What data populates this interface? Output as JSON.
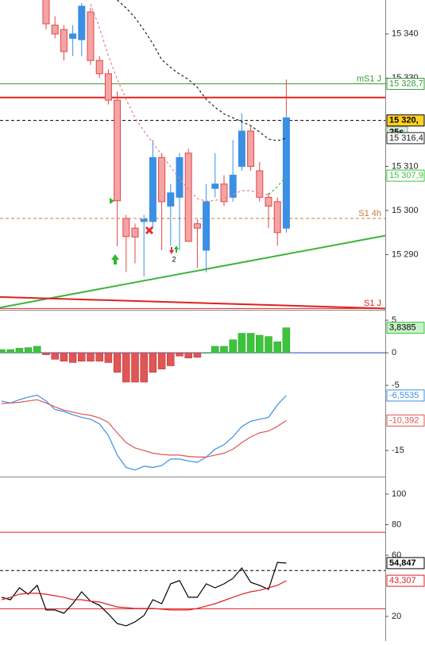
{
  "chart_data": [
    {
      "type": "candlestick",
      "open": [
        null,
        null,
        null,
        null,
        null,
        15348,
        15342,
        15341,
        15339,
        15338.7,
        15345,
        15334,
        15331,
        15325,
        15298.2,
        15296,
        15297.5,
        15297.5,
        15312,
        15301,
        15303,
        15313,
        15297,
        15291,
        15305,
        15306,
        15303,
        15310,
        15318,
        15309,
        15303,
        15302,
        15296
      ],
      "high": [
        null,
        null,
        null,
        null,
        null,
        15349,
        15344,
        15342,
        15342,
        15347,
        15346,
        15335,
        15332,
        15327,
        15299,
        15297,
        15299,
        15316,
        15313,
        15306,
        15313,
        15314,
        15298,
        15306,
        15313,
        15308,
        15316,
        15322,
        15319,
        15311,
        15304,
        15303,
        15322
      ],
      "low": [
        null,
        null,
        null,
        null,
        null,
        15341,
        15339,
        15334,
        15335,
        15335,
        15333,
        15330,
        15324,
        15291.9,
        15286.1,
        15288,
        15285,
        15296,
        15291,
        15292,
        15291,
        15293,
        15287,
        15286,
        15303,
        15301,
        15302,
        15309,
        15309,
        15302,
        15296,
        15292,
        15295
      ],
      "close": [
        null,
        null,
        null,
        null,
        null,
        15342.3,
        15340,
        15336,
        15340,
        15346.3,
        15334,
        15331,
        15325,
        15302.2,
        15294.1,
        15294,
        15298,
        15312,
        15302,
        15304,
        15312,
        15293,
        15296,
        15302,
        15306,
        15302,
        15308,
        15318,
        15310,
        15303,
        15301,
        15295,
        15321
      ],
      "extra_high": 15329.7,
      "up_color": "#3b8fe4",
      "down_color": "#f4a4a4",
      "down_stroke": "#e04848",
      "ylim": [
        15277.5,
        15347.7
      ],
      "yticks": [
        {
          "value": 15340,
          "label": "15 340"
        },
        {
          "value": 15330,
          "label": "15 330"
        },
        {
          "value": 15310,
          "label": "15 310"
        },
        {
          "value": 15300,
          "label": "15 300"
        },
        {
          "value": 15290,
          "label": "15 290"
        }
      ],
      "series": [
        {
          "color": "#222222",
          "dash": true,
          "end_label": "15 316,4",
          "values": [
            null,
            null,
            null,
            null,
            null,
            null,
            null,
            null,
            null,
            null,
            null,
            null,
            null,
            15347.7,
            15345.9,
            15343.7,
            15340.9,
            15337.8,
            15334.2,
            15332.4,
            15330.9,
            15329.7,
            15327.9,
            15325.2,
            15323.4,
            15321.9,
            15321.0,
            15320.1,
            15319.2,
            15317.8,
            15316.2,
            15315.8,
            15316.4
          ]
        },
        {
          "color": "#e88080",
          "dash": true,
          "values": [
            null,
            null,
            null,
            null,
            null,
            null,
            null,
            null,
            null,
            null,
            15346.8,
            15341.4,
            15335.1,
            15329.7,
            15325.2,
            15321.0,
            15318.0,
            15315.3,
            15312.6,
            15309.9,
            15307.2,
            15304.8,
            15302.7,
            15302.1,
            15302.3,
            15302.7,
            15303.6,
            15304.5,
            15304.5,
            15303.9,
            15303.6,
            null,
            null
          ]
        },
        {
          "color": "#3cc43c",
          "dash": true,
          "end_label": "15 307,9",
          "values": [
            null,
            null,
            null,
            null,
            null,
            null,
            null,
            null,
            null,
            null,
            null,
            null,
            null,
            null,
            null,
            null,
            null,
            null,
            null,
            null,
            null,
            null,
            null,
            null,
            null,
            null,
            null,
            null,
            null,
            null,
            15303.6,
            15305.4,
            15307.9
          ]
        }
      ],
      "levels": [
        {
          "name": "mS1 J",
          "value": 15328.7,
          "label": "15 328,7",
          "color": "#3a9a3a"
        },
        {
          "value": 15325.6,
          "color": "#e02020",
          "width": 2
        },
        {
          "value": 15320.4,
          "label": "15 320,",
          "timer": "25s",
          "color": "#000000",
          "dash": true,
          "label_fill": "#ffd21f"
        },
        {
          "name": "S1 4h",
          "value": 15298.2,
          "color": "#d07a3a",
          "dash": true
        },
        {
          "name": "S1 J",
          "value": 15277.8,
          "color": "#e02020"
        }
      ],
      "trendlines": [
        {
          "color": "#3cb43c",
          "values": [
            15278,
            15294.3
          ]
        },
        {
          "color": "#e02020",
          "values": [
            15280.4,
            15277.8
          ]
        }
      ],
      "annotations": [
        "2"
      ]
    },
    {
      "type": "bar",
      "values": [
        0.5,
        0.5,
        0.7,
        0.8,
        1,
        -0.3,
        -1,
        -1.3,
        -1.5,
        -1.3,
        -1.3,
        -1.3,
        -1.5,
        -3,
        -4.5,
        -4.5,
        -4.5,
        -3,
        -2.5,
        -2,
        -0.5,
        -0.8,
        -0.7,
        0,
        1,
        1,
        2,
        3,
        3,
        2.7,
        2.5,
        1.7,
        3.8385
      ],
      "end_label": "3,8385",
      "up_color": "#3cc43c",
      "down_color": "#e05555",
      "ylim": [
        -19,
        6.6
      ],
      "yticks": [
        5,
        0,
        -5,
        -15
      ],
      "levels": [
        {
          "value": 0,
          "color": "#2040c0"
        }
      ],
      "series": [
        {
          "color": "#3b8fe4",
          "end_label": "-6,5535",
          "values": [
            -7.4,
            -7.7,
            -7.2,
            -6.8,
            -6.5,
            -7.4,
            -8.7,
            -9.0,
            -9.5,
            -9.9,
            -10.2,
            -10.9,
            -12.7,
            -15.7,
            -17.6,
            -18.0,
            -17.4,
            -17.6,
            -17.3,
            -16.3,
            -16.3,
            -16.6,
            -16.8,
            -16.0,
            -14.8,
            -14.1,
            -12.9,
            -11.3,
            -10.5,
            -10.2,
            -9.9,
            -8.0,
            -6.5535
          ]
        },
        {
          "color": "#e05555",
          "end_label": "-10,392",
          "values": [
            -7.8,
            -7.7,
            -7.6,
            -7.4,
            -7.2,
            -7.7,
            -8.3,
            -8.8,
            -9.1,
            -9.4,
            -9.6,
            -10.0,
            -10.7,
            -12.3,
            -13.8,
            -14.6,
            -15.0,
            -15.4,
            -15.6,
            -15.7,
            -15.7,
            -15.9,
            -16.0,
            -16.0,
            -15.7,
            -15.4,
            -14.8,
            -13.8,
            -12.9,
            -12.3,
            -12.0,
            -11.3,
            -10.392
          ]
        }
      ]
    },
    {
      "type": "line",
      "ylim": [
        3.9,
        111.4
      ],
      "yticks": [
        100,
        80,
        60,
        20
      ],
      "levels": [
        {
          "value": 75,
          "color": "#e02020"
        },
        {
          "value": 25,
          "color": "#e02020"
        },
        {
          "value": 50,
          "color": "#000000",
          "dash": true
        }
      ],
      "series": [
        {
          "color": "#000000",
          "end_label": "54,847",
          "bold": true,
          "values": [
            32.5,
            30.9,
            38.7,
            34.5,
            40.3,
            24.2,
            24.2,
            22.1,
            28.3,
            36.1,
            29.9,
            27.3,
            21.6,
            15.3,
            13.8,
            16.4,
            20.5,
            30.9,
            28.3,
            41.3,
            43.4,
            32.5,
            32.5,
            41.3,
            38.7,
            41.3,
            44.9,
            51.7,
            42.3,
            40.3,
            37.7,
            55.3,
            54.847
          ]
        },
        {
          "color": "#e02020",
          "end_label": "43,307",
          "values": [
            30.9,
            32.5,
            34.5,
            35.1,
            35.1,
            34.5,
            33.5,
            32.5,
            30.9,
            30.9,
            29.9,
            29.4,
            27.8,
            26.2,
            25.7,
            25.2,
            25.2,
            25.2,
            24.7,
            24.2,
            24.2,
            24.2,
            25.2,
            26.8,
            28.3,
            30.4,
            32.5,
            34.5,
            36.1,
            37.1,
            38.7,
            40.3,
            43.307
          ]
        }
      ]
    }
  ]
}
